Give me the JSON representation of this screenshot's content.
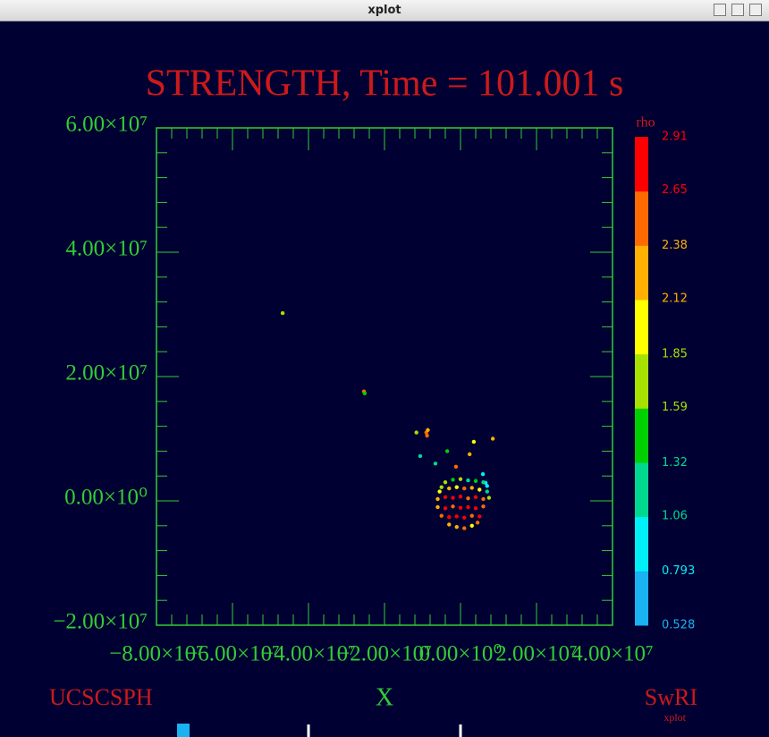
{
  "window_title": "xplot",
  "chart_data": {
    "type": "scatter",
    "title": "STRENGTH, Time = 101.001 s",
    "x_label": "X",
    "footer_left": "UCSCSPH",
    "footer_right": "SwRI",
    "footer_small": "xplot",
    "xlim": [
      -80000000,
      40000000
    ],
    "xticks": [
      {
        "value": -80000000,
        "label": "−8.00×10⁷"
      },
      {
        "value": -60000000,
        "label": "−6.00×10⁷"
      },
      {
        "value": -40000000,
        "label": "−4.00×10⁷"
      },
      {
        "value": -20000000,
        "label": "−2.00×10⁷"
      },
      {
        "value": 0,
        "label": "0.00×10⁰"
      },
      {
        "value": 20000000,
        "label": "2.00×10⁷"
      },
      {
        "value": 40000000,
        "label": "4.00×10⁷"
      }
    ],
    "ylim": [
      -20000000,
      60000000
    ],
    "yticks": [
      {
        "value": -20000000,
        "label": "−2.00×10⁷"
      },
      {
        "value": 0,
        "label": "0.00×10⁰"
      },
      {
        "value": 20000000,
        "label": "2.00×10⁷"
      },
      {
        "value": 40000000,
        "label": "4.00×10⁷"
      },
      {
        "value": 60000000,
        "label": "6.00×10⁷"
      }
    ],
    "color_label": "rho",
    "clim": [
      0.528,
      2.91
    ],
    "cticks": [
      0.528,
      0.793,
      1.06,
      1.32,
      1.59,
      1.85,
      2.12,
      2.38,
      2.65,
      2.91
    ],
    "colormap": [
      "#1ab2f0",
      "#00f0f8",
      "#00d890",
      "#00d000",
      "#a8e000",
      "#ffff00",
      "#ffb000",
      "#ff6a00",
      "#ff0000"
    ],
    "x": [
      -46800000.0,
      -25400000.0,
      -25200000.0,
      -9000000.0,
      -8600000.0,
      -8800000.0,
      -11600000.0,
      8500000.0,
      3500000.0,
      2400000.0,
      -3500000.0,
      -10600000.0,
      -6600000.0,
      -1200000.0,
      5900000.0,
      6600000.0,
      -4000000.0,
      -2000000.0,
      0,
      2000000.0,
      4000000.0,
      6000000.0,
      7000000.0,
      -5000000.0,
      -5500000.0,
      -3000000.0,
      -1000000.0,
      1000000.0,
      3000000.0,
      5000000.0,
      7000000.0,
      -6000000.0,
      -4000000.0,
      -2000000.0,
      0,
      2000000.0,
      4000000.0,
      6000000.0,
      7500000.0,
      -6000000.0,
      -4000000.0,
      -2000000.0,
      0,
      2000000.0,
      4000000.0,
      6000000.0,
      -5000000.0,
      -3000000.0,
      -1000000.0,
      1000000.0,
      3000000.0,
      5000000.0,
      -3000000.0,
      -1000000.0,
      1000000.0,
      3000000.0,
      4500000.0
    ],
    "y": [
      30200000.0,
      17600000.0,
      17300000.0,
      11000000.0,
      11400000.0,
      10500000.0,
      11000000.0,
      10000000.0,
      9500000.0,
      7500000.0,
      8000000.0,
      7200000.0,
      6000000.0,
      5500000.0,
      4300000.0,
      2900000.0,
      3000000.0,
      3400000.0,
      3500000.0,
      3300000.0,
      3200000.0,
      3000000.0,
      2400000.0,
      2200000.0,
      1500000.0,
      2000000.0,
      2200000.0,
      2000000.0,
      2100000.0,
      1800000.0,
      1500000.0,
      300000.0,
      600000.0,
      500000.0,
      700000.0,
      400000.0,
      600000.0,
      300000.0,
      500000.0,
      -1000000.0,
      -1200000.0,
      -900000.0,
      -1100000.0,
      -1000000.0,
      -1200000.0,
      -900000.0,
      -2400000.0,
      -2600000.0,
      -2500000.0,
      -2700000.0,
      -2400000.0,
      -2500000.0,
      -3800000.0,
      -4200000.0,
      -4400000.0,
      -4000000.0,
      -3500000.0
    ],
    "rho": [
      1.7,
      2.5,
      1.5,
      2.4,
      2.2,
      2.6,
      1.8,
      2.2,
      1.9,
      2.2,
      1.4,
      1.2,
      1.3,
      2.4,
      1.0,
      0.9,
      1.6,
      1.4,
      1.7,
      1.3,
      1.5,
      1.1,
      0.9,
      1.8,
      2.1,
      2.3,
      2.0,
      2.5,
      2.2,
      1.9,
      1.2,
      2.2,
      2.7,
      2.9,
      2.8,
      2.6,
      2.8,
      2.4,
      1.6,
      2.3,
      2.8,
      2.5,
      2.9,
      2.7,
      2.85,
      2.6,
      2.4,
      2.9,
      2.7,
      2.8,
      2.6,
      2.75,
      2.3,
      2.2,
      2.4,
      2.1,
      2.5
    ]
  }
}
